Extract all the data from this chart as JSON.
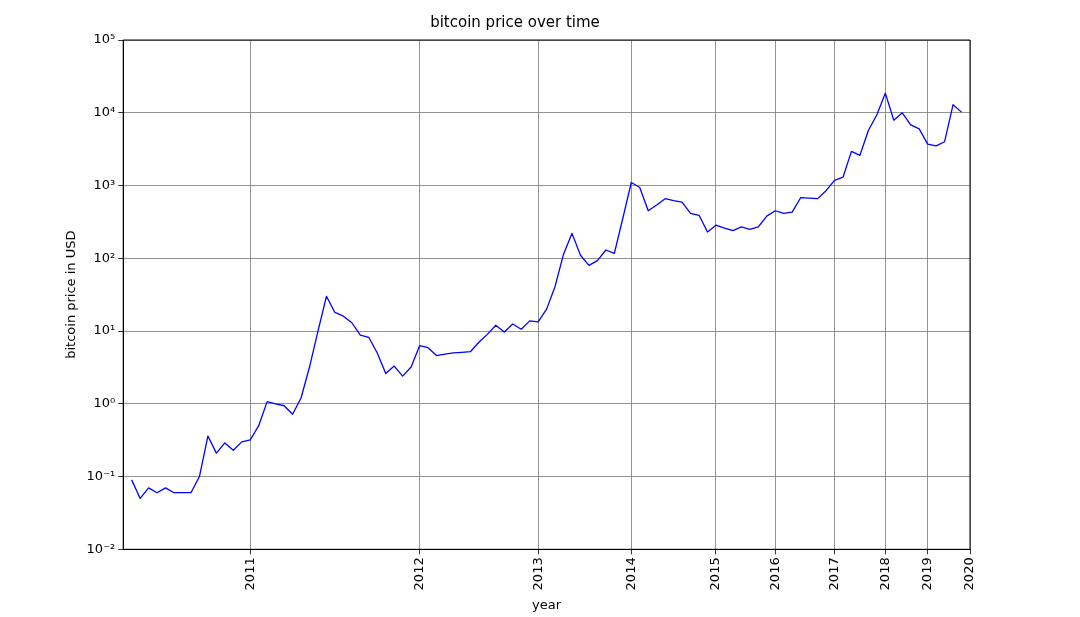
{
  "chart_data": {
    "type": "line",
    "title": "bitcoin price over time",
    "xlabel": "year",
    "ylabel": "bitcoin price in USD",
    "log": true,
    "grid": true,
    "legend": false,
    "marker": "none",
    "line_style": "solid",
    "categories": [
      null,
      null,
      null,
      null,
      null,
      null,
      null,
      null,
      null,
      null,
      null,
      null,
      null,
      null,
      null,
      "2011",
      null,
      null,
      null,
      null,
      null,
      null,
      null,
      null,
      null,
      null,
      null,
      null,
      null,
      null,
      null,
      null,
      null,
      null,
      null,
      "2012",
      null,
      null,
      null,
      null,
      null,
      null,
      null,
      null,
      null,
      null,
      null,
      null,
      null,
      "2013",
      null,
      null,
      null,
      null,
      null,
      null,
      null,
      null,
      null,
      null,
      "2014",
      null,
      null,
      null,
      null,
      null,
      null,
      null,
      null,
      null,
      "2015",
      null,
      null,
      null,
      null,
      null,
      null,
      "2016",
      null,
      null,
      null,
      null,
      null,
      null,
      "2017",
      null,
      null,
      null,
      null,
      null,
      "2018",
      null,
      null,
      null,
      null,
      "2019",
      null,
      null,
      null,
      null,
      "2020"
    ],
    "ylim": [
      0.01,
      100000
    ],
    "yticks": [
      {
        "value": 0.01,
        "label": "10⁻²"
      },
      {
        "value": 0.1,
        "label": "10⁻¹"
      },
      {
        "value": 1,
        "label": "10⁰"
      },
      {
        "value": 10,
        "label": "10¹"
      },
      {
        "value": 100,
        "label": "10²"
      },
      {
        "value": 1000,
        "label": "10³"
      },
      {
        "value": 10000,
        "label": "10⁴"
      },
      {
        "value": 100000,
        "label": "10⁵"
      }
    ],
    "series": [
      {
        "color": "#0000ff",
        "values": [
          null,
          0.09,
          0.05,
          0.07,
          0.06,
          0.07,
          0.06,
          0.06,
          0.06,
          0.1,
          0.36,
          0.21,
          0.29,
          0.23,
          0.3,
          0.32,
          0.5,
          1.07,
          1.0,
          0.94,
          0.72,
          1.2,
          3.2,
          10,
          30,
          18,
          16,
          13,
          8.8,
          8.2,
          5,
          2.6,
          3.3,
          2.4,
          3.2,
          6.3,
          5.9,
          4.6,
          4.8,
          5,
          5.1,
          5.2,
          7,
          9,
          12,
          9.7,
          12.5,
          10.6,
          13.8,
          13.4,
          20,
          41,
          114,
          220,
          110,
          80,
          93,
          130,
          117,
          355,
          1100,
          940,
          450,
          540,
          660,
          620,
          590,
          415,
          390,
          230,
          285,
          260,
          240,
          270,
          250,
          270,
          380,
          450,
          415,
          430,
          680,
          670,
          660,
          850,
          1180,
          1300,
          2950,
          2600,
          5700,
          9400,
          18600,
          7900,
          10000,
          6800,
          6000,
          3700,
          3500,
          4000,
          12900,
          10200,
          null
        ]
      }
    ]
  }
}
